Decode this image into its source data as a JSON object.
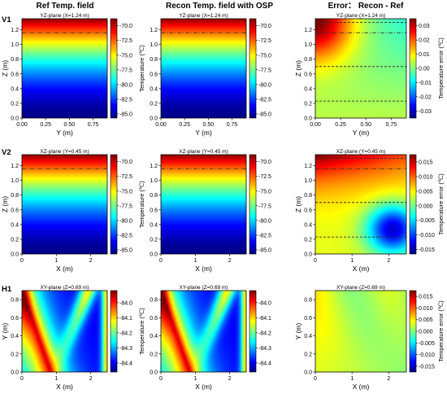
{
  "figure": {
    "column_titles": [
      "Ref Temp. field",
      "Recon Temp. field with OSP",
      "Error： Recon - Ref"
    ],
    "row_labels": [
      "V1",
      "V2",
      "H1"
    ]
  },
  "colors": {
    "jet": [
      "#00007f",
      "#0000ff",
      "#007fff",
      "#00ffff",
      "#7fff7f",
      "#ffff00",
      "#ff7f00",
      "#ff0000",
      "#7f0000"
    ],
    "dashed_line": "#333333"
  },
  "chart_data": [
    {
      "id": "V1-ref",
      "type": "heatmap",
      "title": "YZ-plane (X=1.24 m)",
      "xlabel": "Y (m)",
      "ylabel": "Z (m)",
      "field": "temp_vertical",
      "xlim": [
        0,
        0.9
      ],
      "ylim": [
        0,
        1.35
      ],
      "xticks": [
        "0.00",
        "0.25",
        "0.50",
        "0.75"
      ],
      "yticks": [
        "0.0",
        "0.2",
        "0.4",
        "0.6",
        "0.8",
        "1.0",
        "1.2"
      ],
      "clim": [
        -85.7,
        -68.8
      ],
      "cbar_label": "Temperature (℃)",
      "cbar_ticks": [
        "-70.0",
        "-72.5",
        "-75.0",
        "-77.5",
        "-80.0",
        "-82.5",
        "-85.0"
      ],
      "lines_z": [
        1.16
      ]
    },
    {
      "id": "V1-recon",
      "type": "heatmap",
      "title": "YZ-plane (X=1.24 m)",
      "xlabel": "Y (m)",
      "ylabel": "",
      "field": "temp_vertical",
      "xlim": [
        0,
        0.9
      ],
      "ylim": [
        0,
        1.35
      ],
      "xticks": [
        "0.00",
        "0.25",
        "0.50",
        "0.75"
      ],
      "yticks": [
        "0.0",
        "0.2",
        "0.4",
        "0.6",
        "0.8",
        "1.0",
        "1.2"
      ],
      "clim": [
        -85.7,
        -68.8
      ],
      "cbar_label": "",
      "cbar_ticks": [
        "-70.0",
        "-72.5",
        "-75.0",
        "-77.5",
        "-80.0",
        "-82.5",
        "-85.0"
      ],
      "lines_z": [
        1.16
      ]
    },
    {
      "id": "V1-err",
      "type": "heatmap",
      "title": "YZ-plane (X=1.24 m)",
      "xlabel": "Y (m)",
      "ylabel": "Z (m)",
      "field": "err_v1",
      "xlim": [
        0,
        0.9
      ],
      "ylim": [
        0,
        1.35
      ],
      "xticks": [
        "0.00",
        "0.25",
        "0.50",
        "0.75"
      ],
      "yticks": [
        "0.0",
        "0.2",
        "0.4",
        "0.6",
        "0.8",
        "1.0",
        "1.2"
      ],
      "clim": [
        -0.035,
        0.035
      ],
      "cbar_label": "Temperature error (℃)",
      "cbar_ticks": [
        "0.03",
        "0.02",
        "0.01",
        "0.00",
        "-0.01",
        "-0.02",
        "-0.03"
      ],
      "lines_z": [
        1.3,
        1.16,
        0.7,
        0.23
      ]
    },
    {
      "id": "V2-ref",
      "type": "heatmap",
      "title": "XZ-plane (Y=0.45 m)",
      "xlabel": "X (m)",
      "ylabel": "Z (m)",
      "field": "temp_vertical",
      "xlim": [
        0,
        2.48
      ],
      "ylim": [
        0,
        1.35
      ],
      "xticks": [
        "0",
        "1",
        "2"
      ],
      "yticks": [
        "0.0",
        "0.2",
        "0.4",
        "0.6",
        "0.8",
        "1.0",
        "1.2"
      ],
      "clim": [
        -85.7,
        -68.8
      ],
      "cbar_label": "Temperature (℃)",
      "cbar_ticks": [
        "-70.0",
        "-72.5",
        "-75.0",
        "-77.5",
        "-80.0",
        "-82.5",
        "-85.0"
      ],
      "lines_z": [
        1.16
      ]
    },
    {
      "id": "V2-recon",
      "type": "heatmap",
      "title": "XZ-plane (Y=0.45 m)",
      "xlabel": "X (m)",
      "ylabel": "",
      "field": "temp_vertical",
      "xlim": [
        0,
        2.48
      ],
      "ylim": [
        0,
        1.35
      ],
      "xticks": [
        "0",
        "1",
        "2"
      ],
      "yticks": [
        "0.0",
        "0.2",
        "0.4",
        "0.6",
        "0.8",
        "1.0",
        "1.2"
      ],
      "clim": [
        -85.7,
        -68.8
      ],
      "cbar_label": "",
      "cbar_ticks": [
        "-70.0",
        "-72.5",
        "-75.0",
        "-77.5",
        "-80.0",
        "-82.5",
        "-85.0"
      ],
      "lines_z": [
        1.16
      ]
    },
    {
      "id": "V2-err",
      "type": "heatmap",
      "title": "XZ-plane (Y=0.45 m)",
      "xlabel": "X (m)",
      "ylabel": "Z (m)",
      "field": "err_v2",
      "xlim": [
        0,
        2.48
      ],
      "ylim": [
        0,
        1.35
      ],
      "xticks": [
        "0",
        "1",
        "2"
      ],
      "yticks": [
        "0.0",
        "0.2",
        "0.4",
        "0.6",
        "0.8",
        "1.0",
        "1.2"
      ],
      "clim": [
        -0.0165,
        0.0175
      ],
      "cbar_label": "Temperature error (℃)",
      "cbar_ticks": [
        "0.015",
        "0.010",
        "0.005",
        "0.000",
        "-0.005",
        "-0.010",
        "-0.015"
      ],
      "lines_z": [
        1.3,
        1.16,
        0.7,
        0.23
      ]
    },
    {
      "id": "H1-ref",
      "type": "heatmap",
      "title": "XY-plane (Z=0.69 m)",
      "xlabel": "X (m)",
      "ylabel": "Y (m)",
      "field": "temp_h1",
      "xlim": [
        0,
        2.48
      ],
      "ylim": [
        0,
        0.9
      ],
      "xticks": [
        "0",
        "1",
        "2"
      ],
      "yticks": [
        "0.0",
        "0.2",
        "0.4",
        "0.6",
        "0.8"
      ],
      "clim": [
        -84.46,
        -83.92
      ],
      "cbar_label": "Temperature (℃)",
      "cbar_ticks": [
        "-84.0",
        "-84.1",
        "-84.2",
        "-84.3",
        "-84.4"
      ],
      "lines_z": []
    },
    {
      "id": "H1-recon",
      "type": "heatmap",
      "title": "XY-plane (Z=0.69 m)",
      "xlabel": "X (m)",
      "ylabel": "",
      "field": "temp_h1",
      "xlim": [
        0,
        2.48
      ],
      "ylim": [
        0,
        0.9
      ],
      "xticks": [
        "0",
        "1",
        "2"
      ],
      "yticks": [
        "0.0",
        "0.2",
        "0.4",
        "0.6",
        "0.8"
      ],
      "clim": [
        -84.46,
        -83.92
      ],
      "cbar_label": "",
      "cbar_ticks": [
        "-84.0",
        "-84.1",
        "-84.2",
        "-84.3",
        "-84.4"
      ],
      "lines_z": []
    },
    {
      "id": "H1-err",
      "type": "heatmap",
      "title": "XY-plane (Z=0.69 m)",
      "xlabel": "X (m)",
      "ylabel": "Y (m)",
      "field": "err_h1",
      "xlim": [
        0,
        2.48
      ],
      "ylim": [
        0,
        0.9
      ],
      "xticks": [
        "0",
        "1",
        "2"
      ],
      "yticks": [
        "0.0",
        "0.2",
        "0.4",
        "0.6",
        "0.8"
      ],
      "clim": [
        -0.0175,
        0.0175
      ],
      "cbar_label": "Temperature error (℃)",
      "cbar_ticks": [
        "0.015",
        "0.010",
        "0.005",
        "0.000",
        "-0.005",
        "-0.010",
        "-0.015"
      ],
      "lines_z": []
    }
  ]
}
